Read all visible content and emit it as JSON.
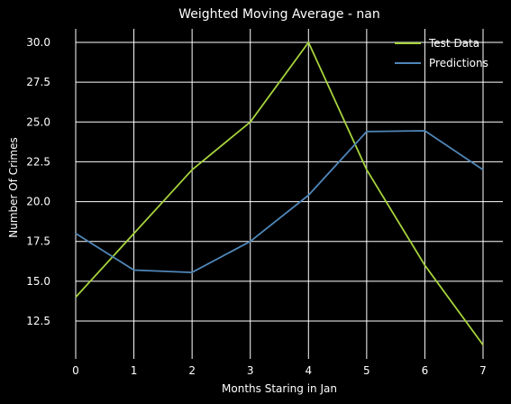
{
  "chart_data": {
    "type": "line",
    "title": "Weighted Moving Average - nan",
    "xlabel": "Months Staring in Jan",
    "ylabel": "Number Of Crimes",
    "x": [
      0,
      1,
      2,
      3,
      4,
      5,
      6,
      7
    ],
    "xticks": [
      "0",
      "1",
      "2",
      "3",
      "4",
      "5",
      "6",
      "7"
    ],
    "yticks": [
      "12.5",
      "15.0",
      "17.5",
      "20.0",
      "22.5",
      "25.0",
      "27.5",
      "30.0"
    ],
    "ytick_values": [
      12.5,
      15.0,
      17.5,
      20.0,
      22.5,
      25.0,
      27.5,
      30.0
    ],
    "xlim": [
      -0.15,
      7.15
    ],
    "ylim": [
      10.2,
      30.9
    ],
    "grid": true,
    "legend_position": "upper right",
    "series": [
      {
        "name": "Test Data",
        "color": "#a6d33d",
        "values": [
          14,
          18,
          22,
          25,
          30,
          22,
          16,
          11
        ]
      },
      {
        "name": "Predictions",
        "color": "#4f86b8",
        "values": [
          18.0,
          15.7,
          15.55,
          17.5,
          20.4,
          24.4,
          24.45,
          22.0
        ]
      }
    ],
    "background": "#000000",
    "grid_color": "#ffffff",
    "text_color": "#ffffff"
  }
}
